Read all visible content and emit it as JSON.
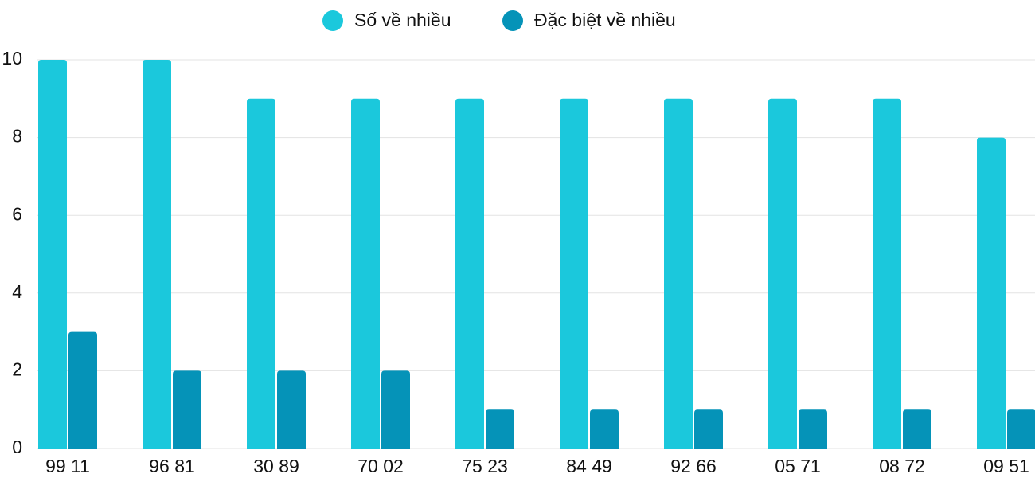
{
  "chart_data": {
    "type": "bar",
    "categories": [
      "99 11",
      "96 81",
      "30 89",
      "70 02",
      "75 23",
      "84 49",
      "92 66",
      "05 71",
      "08 72",
      "09 51"
    ],
    "series": [
      {
        "name": "Số về nhiều",
        "color": "#1bc8dc",
        "values": [
          10,
          10,
          9,
          9,
          9,
          9,
          9,
          9,
          9,
          8
        ]
      },
      {
        "name": "Đặc biệt về nhiều",
        "color": "#0593b8",
        "values": [
          3,
          2,
          2,
          2,
          1,
          1,
          1,
          1,
          1,
          1
        ]
      }
    ],
    "ylim": [
      0,
      10
    ],
    "yticks": [
      0,
      2,
      4,
      6,
      8,
      10
    ],
    "grid": true,
    "legend": "top"
  }
}
